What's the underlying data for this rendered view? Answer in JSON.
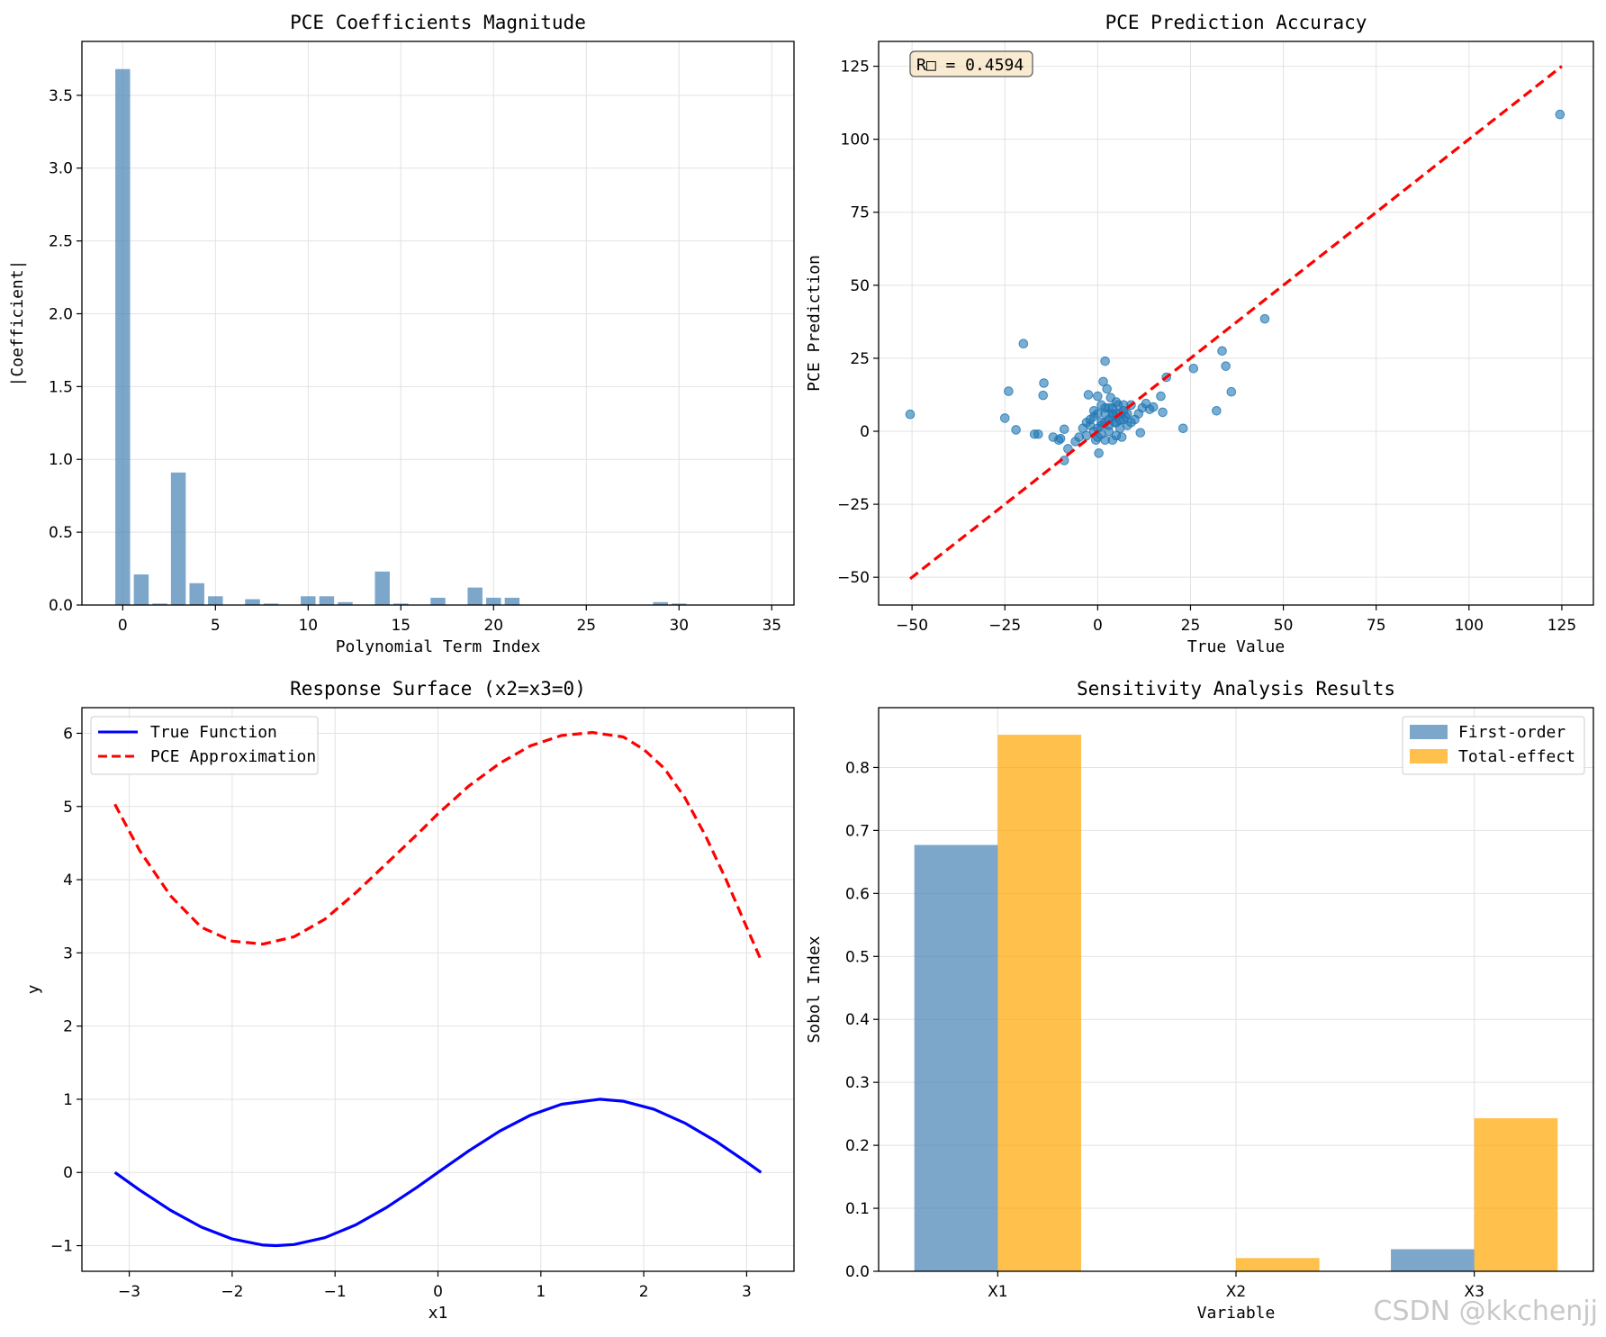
{
  "watermark": "CSDN @kkchenjj",
  "chart_data": [
    {
      "type": "bar",
      "title": "PCE Coefficients Magnitude",
      "xlabel": "Polynomial Term Index",
      "ylabel": "|Coefficient|",
      "xlim": [
        -2.2,
        36.2
      ],
      "ylim": [
        0,
        3.87
      ],
      "xticks": [
        0,
        5,
        10,
        15,
        20,
        25,
        30,
        35
      ],
      "yticks": [
        0.0,
        0.5,
        1.0,
        1.5,
        2.0,
        2.5,
        3.0,
        3.5
      ],
      "ytick_labels": [
        "0.0",
        "0.5",
        "1.0",
        "1.5",
        "2.0",
        "2.5",
        "3.0",
        "3.5"
      ],
      "grid": true,
      "color": "#4682b4",
      "x": [
        0,
        1,
        2,
        3,
        4,
        5,
        6,
        7,
        8,
        9,
        10,
        11,
        12,
        13,
        14,
        15,
        16,
        17,
        18,
        19,
        20,
        21,
        22,
        23,
        24,
        25,
        26,
        27,
        28,
        29,
        30,
        31,
        32,
        33,
        34
      ],
      "values": [
        3.68,
        0.21,
        0.01,
        0.91,
        0.15,
        0.06,
        0.0,
        0.04,
        0.01,
        0.0,
        0.06,
        0.06,
        0.02,
        0.0,
        0.23,
        0.01,
        0.0,
        0.05,
        0.0,
        0.12,
        0.05,
        0.05,
        0.0,
        0.0,
        0.0,
        0.0,
        0.0,
        0.0,
        0.0,
        0.02,
        0.01,
        0.0,
        0.0,
        0.0,
        0.0
      ]
    },
    {
      "type": "scatter",
      "title": "PCE Prediction Accuracy",
      "xlabel": "True Value",
      "ylabel": "PCE Prediction",
      "xlim": [
        -59,
        133.5
      ],
      "ylim": [
        -59.5,
        133.5
      ],
      "xticks": [
        -50,
        -25,
        0,
        25,
        50,
        75,
        100,
        125
      ],
      "yticks": [
        -50,
        -25,
        0,
        25,
        50,
        75,
        100,
        125
      ],
      "grid": true,
      "color": "#1f77b4",
      "annotation": "R□ = 0.4594",
      "reference_line": {
        "x": [
          -50.5,
          125
        ],
        "y": [
          -50.5,
          125
        ],
        "color": "#ff0000",
        "style": "dashed"
      },
      "points": [
        [
          -50.5,
          5.8
        ],
        [
          -20,
          30
        ],
        [
          -24,
          13.7
        ],
        [
          -25,
          4.5
        ],
        [
          -22,
          0.5
        ],
        [
          -17,
          -1
        ],
        [
          -16,
          -1
        ],
        [
          -14.5,
          16.5
        ],
        [
          -14.7,
          12.3
        ],
        [
          -12,
          -2
        ],
        [
          -9,
          0.7
        ],
        [
          -10,
          -2.5
        ],
        [
          -10.5,
          -3
        ],
        [
          -9,
          -10
        ],
        [
          -8,
          -6
        ],
        [
          -6,
          -3.5
        ],
        [
          -5,
          -2
        ],
        [
          -4,
          1
        ],
        [
          -3,
          -1.5
        ],
        [
          -2.5,
          12.5
        ],
        [
          -2,
          2
        ],
        [
          -1,
          5
        ],
        [
          -0.5,
          -3
        ],
        [
          0,
          12
        ],
        [
          0.3,
          -7.5
        ],
        [
          1,
          3
        ],
        [
          1.5,
          17
        ],
        [
          2,
          24
        ],
        [
          2,
          8
        ],
        [
          2.5,
          14.5
        ],
        [
          3,
          0
        ],
        [
          3.5,
          11.5
        ],
        [
          4,
          6
        ],
        [
          4.5,
          3
        ],
        [
          5,
          -1.5
        ],
        [
          5.5,
          9
        ],
        [
          6,
          4
        ],
        [
          6.5,
          -2
        ],
        [
          7,
          7
        ],
        [
          7.5,
          5
        ],
        [
          8,
          2
        ],
        [
          9,
          9
        ],
        [
          10,
          4
        ],
        [
          11,
          6
        ],
        [
          11.5,
          -0.5
        ],
        [
          12,
          8
        ],
        [
          13,
          9.5
        ],
        [
          14,
          7.5
        ],
        [
          15,
          8.3
        ],
        [
          17,
          12
        ],
        [
          17.5,
          6.5
        ],
        [
          18.5,
          18.5
        ],
        [
          23,
          1
        ],
        [
          25.8,
          21.5
        ],
        [
          32,
          7
        ],
        [
          33.5,
          27.5
        ],
        [
          34.5,
          22.3
        ],
        [
          36,
          13.5
        ],
        [
          45,
          38.5
        ],
        [
          124.5,
          108.5
        ],
        [
          -1,
          0
        ],
        [
          0,
          1
        ],
        [
          1,
          2
        ],
        [
          2,
          3
        ],
        [
          3,
          4
        ],
        [
          4,
          5
        ],
        [
          5,
          6
        ],
        [
          6,
          6
        ],
        [
          7,
          4
        ],
        [
          -2,
          4
        ],
        [
          0,
          6
        ],
        [
          1,
          -1
        ],
        [
          3,
          8
        ],
        [
          4,
          -3
        ],
        [
          5,
          10
        ],
        [
          6,
          1
        ],
        [
          8,
          6
        ],
        [
          9,
          3
        ],
        [
          0,
          -2
        ],
        [
          2,
          6
        ],
        [
          1,
          9
        ],
        [
          3,
          2
        ],
        [
          4,
          8
        ],
        [
          5,
          3
        ],
        [
          7,
          9
        ],
        [
          2,
          -3
        ],
        [
          -3,
          3
        ],
        [
          -1,
          7
        ]
      ]
    },
    {
      "type": "line",
      "title": "Response Surface (x2=x3=0)",
      "xlabel": "x1",
      "ylabel": "y",
      "xlim": [
        -3.46,
        3.46
      ],
      "ylim": [
        -1.35,
        6.35
      ],
      "xticks": [
        -3,
        -2,
        -1,
        0,
        1,
        2,
        3
      ],
      "yticks": [
        -1,
        0,
        1,
        2,
        3,
        4,
        5,
        6
      ],
      "grid": true,
      "legend_location": "top-left",
      "series": [
        {
          "name": "True Function",
          "color": "#0000ff",
          "style": "solid",
          "x": [
            -3.14,
            -2.9,
            -2.6,
            -2.3,
            -2.0,
            -1.7,
            -1.5708,
            -1.4,
            -1.1,
            -0.8,
            -0.5,
            -0.2,
            0.0,
            0.3,
            0.6,
            0.9,
            1.2,
            1.5708,
            1.8,
            2.1,
            2.4,
            2.7,
            3.0,
            3.14
          ],
          "values": [
            0.0,
            -0.239,
            -0.516,
            -0.746,
            -0.909,
            -0.992,
            -1.0,
            -0.985,
            -0.891,
            -0.717,
            -0.479,
            -0.199,
            0.0,
            0.296,
            0.565,
            0.783,
            0.932,
            1.0,
            0.974,
            0.863,
            0.675,
            0.427,
            0.141,
            0.0
          ]
        },
        {
          "name": "PCE Approximation",
          "color": "#ff0000",
          "style": "dashed",
          "x": [
            -3.14,
            -2.9,
            -2.6,
            -2.3,
            -2.0,
            -1.7,
            -1.4,
            -1.1,
            -0.8,
            -0.5,
            -0.2,
            0.0,
            0.3,
            0.6,
            0.9,
            1.2,
            1.5,
            1.8,
            2.0,
            2.2,
            2.4,
            2.6,
            2.8,
            3.0,
            3.14
          ],
          "values": [
            5.03,
            4.4,
            3.78,
            3.35,
            3.16,
            3.12,
            3.22,
            3.46,
            3.82,
            4.22,
            4.62,
            4.9,
            5.28,
            5.59,
            5.83,
            5.97,
            6.01,
            5.95,
            5.78,
            5.52,
            5.12,
            4.6,
            4.0,
            3.35,
            2.9
          ]
        }
      ]
    },
    {
      "type": "bar",
      "title": "Sensitivity Analysis Results",
      "xlabel": "Variable",
      "ylabel": "Sobol Index",
      "categories": [
        "X1",
        "X2",
        "X3"
      ],
      "ylim": [
        0,
        0.895
      ],
      "yticks": [
        0.0,
        0.1,
        0.2,
        0.3,
        0.4,
        0.5,
        0.6,
        0.7,
        0.8
      ],
      "ytick_labels": [
        "0.0",
        "0.1",
        "0.2",
        "0.3",
        "0.4",
        "0.5",
        "0.6",
        "0.7",
        "0.8"
      ],
      "grid": true,
      "legend_location": "top-right",
      "series": [
        {
          "name": "First-order",
          "color": "#4682b4",
          "values": [
            0.677,
            0.0,
            0.035
          ]
        },
        {
          "name": "Total-effect",
          "color": "#ffa500",
          "values": [
            0.852,
            0.021,
            0.243
          ]
        }
      ]
    }
  ]
}
